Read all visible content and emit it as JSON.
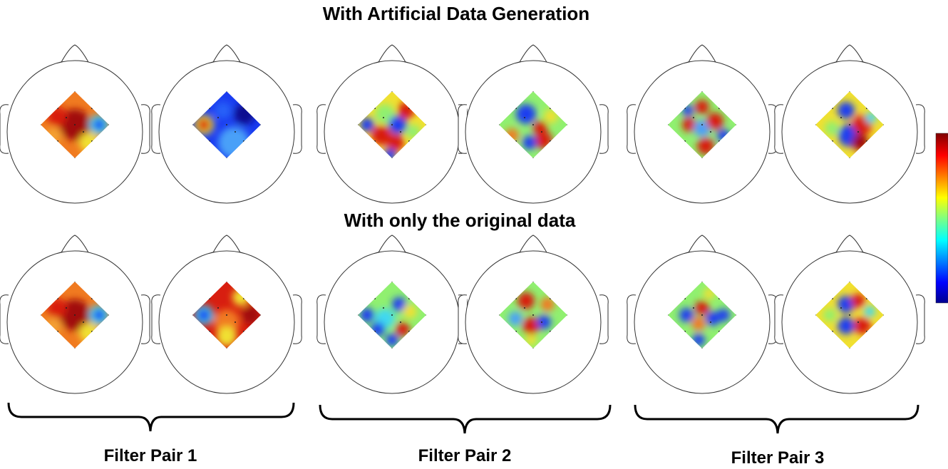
{
  "titles": [
    "With Artificial Data Generation",
    "With only the original data"
  ],
  "labels": [
    "Filter Pair 1",
    "Filter Pair 2",
    "Filter Pair 3"
  ]
}
